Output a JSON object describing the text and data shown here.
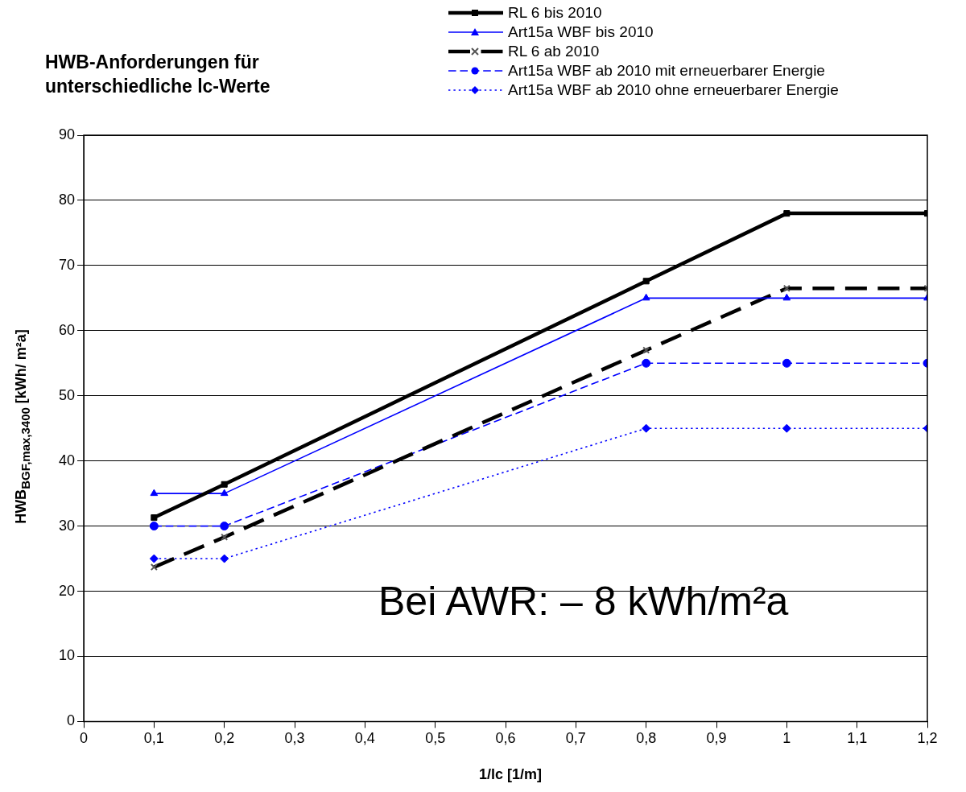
{
  "chart_data": {
    "type": "line",
    "title": "HWB-Anforderungen für unterschiedliche lc-Werte",
    "xlabel": "1/lc [1/m]",
    "ylabel": "HWB$_{BGF,max,3400}$  [kWh/ m²a]",
    "annotations": [
      "Bei AWR: – 8 kWh/m²a"
    ],
    "x": [
      0.1,
      0.2,
      0.8,
      1,
      1.2
    ],
    "xlim": [
      0,
      1.2
    ],
    "xticks": [
      {
        "value": 0,
        "label": "0"
      },
      {
        "value": 0.1,
        "label": "0,1"
      },
      {
        "value": 0.2,
        "label": "0,2"
      },
      {
        "value": 0.3,
        "label": "0,3"
      },
      {
        "value": 0.4,
        "label": "0,4"
      },
      {
        "value": 0.5,
        "label": "0,5"
      },
      {
        "value": 0.6,
        "label": "0,6"
      },
      {
        "value": 0.7,
        "label": "0,7"
      },
      {
        "value": 0.8,
        "label": "0,8"
      },
      {
        "value": 0.9,
        "label": "0,9"
      },
      {
        "value": 1,
        "label": "1"
      },
      {
        "value": 1.1,
        "label": "1,1"
      },
      {
        "value": 1.2,
        "label": "1,2"
      }
    ],
    "ylim": [
      0,
      90
    ],
    "yticks": [
      0,
      10,
      20,
      30,
      40,
      50,
      60,
      70,
      80,
      90
    ],
    "grid": "y",
    "legend": "top right",
    "series": [
      {
        "name": "RL 6 bis 2010",
        "color": "#000000",
        "marker": "square",
        "line_style": "solid",
        "values": [
          31.3,
          36.4,
          67.6,
          78,
          78
        ]
      },
      {
        "name": "Art15a WBF bis 2010",
        "color": "#0000ff",
        "marker": "triangle",
        "line_style": "solid",
        "values": [
          35,
          35,
          65,
          65,
          65
        ]
      },
      {
        "name": "RL 6 ab 2010",
        "color": "#000000",
        "marker": "cross",
        "line_style": "dashed",
        "values": [
          23.7,
          28.3,
          57,
          66.5,
          66.5
        ]
      },
      {
        "name": "Art15a WBF ab 2010 mit erneuerbarer Energie",
        "color": "#0000ff",
        "marker": "circle",
        "line_style": "dashed",
        "values": [
          30,
          30,
          55,
          55,
          55
        ]
      },
      {
        "name": "Art15a WBF ab 2010 ohne erneuerbarer Energie",
        "color": "#0000ff",
        "marker": "diamond",
        "line_style": "dotted",
        "values": [
          25,
          25,
          45,
          45,
          45
        ]
      }
    ]
  }
}
